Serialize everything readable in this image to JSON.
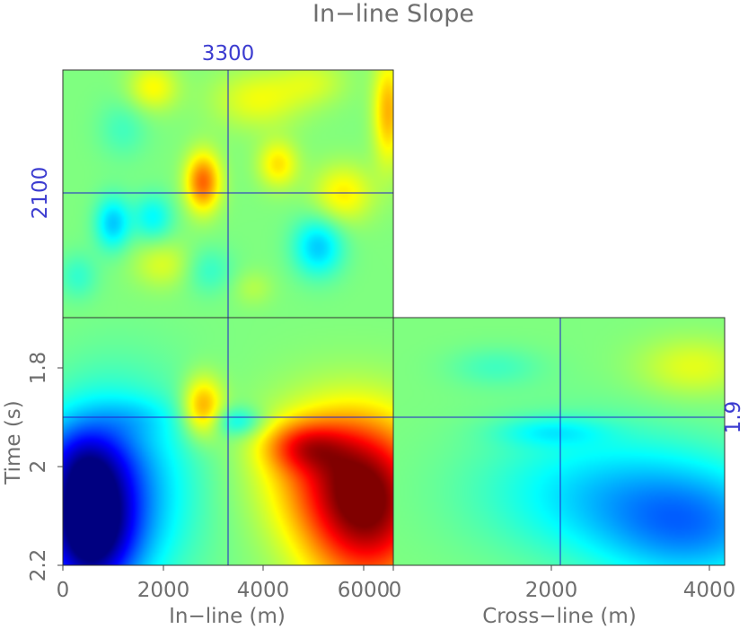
{
  "chart_data": {
    "type": "heatmap",
    "title": "In−line Slope",
    "colormap": "jet",
    "xlabel": "In−line (m)",
    "x2label": "Cross−line (m)",
    "ylabel": "Time (s)",
    "xlim": [
      0,
      6600
    ],
    "x2lim": [
      0,
      4200
    ],
    "ylim": [
      1.7,
      2.2
    ],
    "xticks": [
      "0",
      "2000",
      "4000",
      "6000"
    ],
    "x2ticks": [
      "0",
      "2000",
      "4000"
    ],
    "yticks": [
      "1.8",
      "2",
      "2.2"
    ],
    "slice_markers": {
      "inline_m": "3300",
      "crossline_m": "2100",
      "time_s": "1.9"
    },
    "panels": [
      {
        "name": "inline-time",
        "x_range": [
          0,
          6600
        ],
        "y_range": [
          1.7,
          2.2
        ],
        "blobs": [
          {
            "x": 500,
            "y": 2.12,
            "rx": 900,
            "ry": 0.15,
            "v": -0.95
          },
          {
            "x": 1100,
            "y": 2.05,
            "rx": 1500,
            "ry": 0.2,
            "v": -0.45
          },
          {
            "x": 300,
            "y": 1.98,
            "rx": 900,
            "ry": 0.08,
            "v": -0.25
          },
          {
            "x": 6100,
            "y": 2.1,
            "rx": 1300,
            "ry": 0.16,
            "v": 0.85
          },
          {
            "x": 5500,
            "y": 2.0,
            "rx": 1500,
            "ry": 0.13,
            "v": 0.45
          },
          {
            "x": 4800,
            "y": 1.96,
            "rx": 800,
            "ry": 0.05,
            "v": 0.4
          },
          {
            "x": 2800,
            "y": 1.88,
            "rx": 400,
            "ry": 0.06,
            "v": 0.45
          },
          {
            "x": 3500,
            "y": 1.91,
            "rx": 500,
            "ry": 0.03,
            "v": -0.25
          },
          {
            "x": 1500,
            "y": 1.9,
            "rx": 800,
            "ry": 0.04,
            "v": -0.1
          }
        ]
      },
      {
        "name": "crossline-time",
        "x_range": [
          0,
          4200
        ],
        "y_range": [
          1.7,
          2.2
        ],
        "blobs": [
          {
            "x": 3800,
            "y": 2.12,
            "rx": 1200,
            "ry": 0.12,
            "v": -0.45
          },
          {
            "x": 2500,
            "y": 2.05,
            "rx": 1500,
            "ry": 0.13,
            "v": -0.28
          },
          {
            "x": 1300,
            "y": 1.8,
            "rx": 600,
            "ry": 0.04,
            "v": -0.12
          },
          {
            "x": 3800,
            "y": 1.8,
            "rx": 700,
            "ry": 0.06,
            "v": 0.2
          },
          {
            "x": 2000,
            "y": 1.93,
            "rx": 700,
            "ry": 0.03,
            "v": -0.18
          }
        ]
      },
      {
        "name": "inline-crossline",
        "x_range": [
          0,
          6600
        ],
        "y_range": [
          0,
          4200
        ],
        "blobs": [
          {
            "x": 2800,
            "y": 2300,
            "rx": 350,
            "ry": 500,
            "v": 0.55
          },
          {
            "x": 1000,
            "y": 1600,
            "rx": 350,
            "ry": 450,
            "v": -0.35
          },
          {
            "x": 1800,
            "y": 1700,
            "rx": 400,
            "ry": 400,
            "v": -0.25
          },
          {
            "x": 5100,
            "y": 1200,
            "rx": 500,
            "ry": 500,
            "v": -0.35
          },
          {
            "x": 4300,
            "y": 2600,
            "rx": 400,
            "ry": 400,
            "v": 0.3
          },
          {
            "x": 6500,
            "y": 3500,
            "rx": 300,
            "ry": 900,
            "v": 0.4
          },
          {
            "x": 3900,
            "y": 3700,
            "rx": 900,
            "ry": 500,
            "v": 0.22
          },
          {
            "x": 5600,
            "y": 2100,
            "rx": 600,
            "ry": 500,
            "v": 0.28
          },
          {
            "x": 1800,
            "y": 3900,
            "rx": 500,
            "ry": 400,
            "v": 0.25
          },
          {
            "x": 5000,
            "y": 4000,
            "rx": 700,
            "ry": 400,
            "v": 0.15
          },
          {
            "x": 2000,
            "y": 900,
            "rx": 600,
            "ry": 400,
            "v": 0.18
          },
          {
            "x": 3800,
            "y": 500,
            "rx": 400,
            "ry": 300,
            "v": 0.1
          },
          {
            "x": 300,
            "y": 700,
            "rx": 400,
            "ry": 400,
            "v": -0.15
          },
          {
            "x": 1200,
            "y": 3200,
            "rx": 500,
            "ry": 500,
            "v": -0.12
          },
          {
            "x": 2900,
            "y": 800,
            "rx": 500,
            "ry": 400,
            "v": -0.15
          }
        ]
      }
    ]
  }
}
